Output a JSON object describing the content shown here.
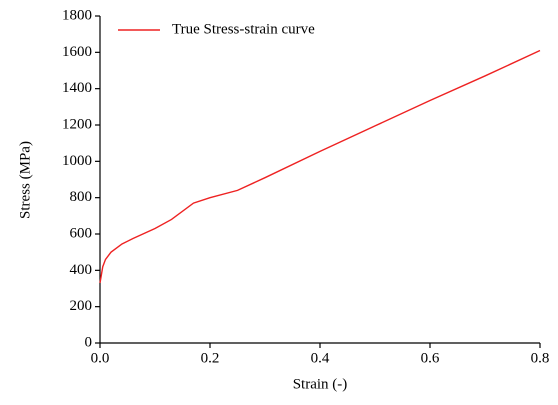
{
  "chart_data": {
    "type": "line",
    "xlabel": "Strain (-)",
    "ylabel": "Stress (MPa)",
    "x": [
      0,
      0.005,
      0.01,
      0.02,
      0.04,
      0.06,
      0.1,
      0.13,
      0.17,
      0.2,
      0.25,
      0.3,
      0.4,
      0.5,
      0.6,
      0.7,
      0.8
    ],
    "series": [
      {
        "name": "True Stress-strain curve",
        "color": "#ee2222",
        "values": [
          330,
          420,
          460,
          500,
          545,
          575,
          630,
          680,
          770,
          800,
          840,
          910,
          1055,
          1195,
          1335,
          1470,
          1610
        ]
      }
    ],
    "xlim": [
      0,
      0.8
    ],
    "ylim": [
      0,
      1800
    ],
    "xticks": [
      {
        "value": 0,
        "label": "0.0"
      },
      0.2,
      0.4,
      0.6,
      0.8
    ],
    "yticks": [
      0,
      200,
      400,
      600,
      800,
      1000,
      1200,
      1400,
      1600,
      1800
    ],
    "legend": "upper-left"
  }
}
